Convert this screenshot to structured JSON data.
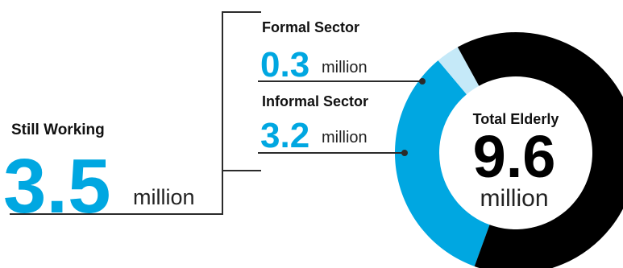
{
  "colors": {
    "formal": "#c5e9f8",
    "informal": "#00a7e1",
    "not_working": "#000000",
    "accent_text": "#00a7e1",
    "line": "#2b2b2b"
  },
  "still_working": {
    "title": "Still Working",
    "value": "3.5",
    "unit": "million"
  },
  "formal_sector": {
    "title": "Formal Sector",
    "value": "0.3",
    "unit": "million"
  },
  "informal_sector": {
    "title": "Informal Sector",
    "value": "3.2",
    "unit": "million"
  },
  "total": {
    "title": "Total Elderly",
    "value": "9.6",
    "unit": "million"
  },
  "chart_data": {
    "type": "pie",
    "donut": true,
    "unit": "million",
    "total": 9.6,
    "slices": [
      {
        "key": "formal",
        "value": 0.3,
        "color": "#c5e9f8"
      },
      {
        "key": "informal",
        "value": 3.2,
        "color": "#00a7e1"
      },
      {
        "key": "not_working",
        "value": 6.1,
        "color": "#000000"
      }
    ]
  }
}
